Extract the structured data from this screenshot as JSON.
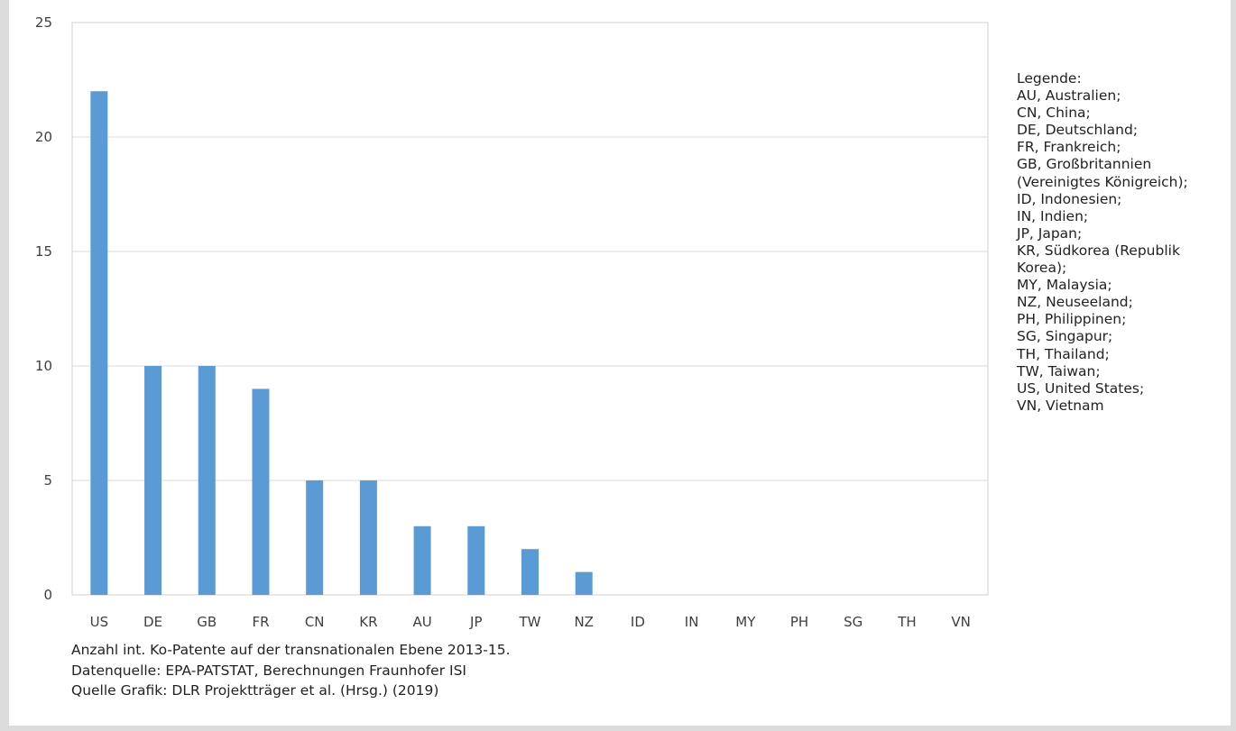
{
  "chart_data": {
    "type": "bar",
    "categories": [
      "US",
      "DE",
      "GB",
      "FR",
      "CN",
      "KR",
      "AU",
      "JP",
      "TW",
      "NZ",
      "ID",
      "IN",
      "MY",
      "PH",
      "SG",
      "TH",
      "VN"
    ],
    "values": [
      22,
      10,
      10,
      9,
      5,
      5,
      3,
      3,
      2,
      1,
      0,
      0,
      0,
      0,
      0,
      0,
      0
    ],
    "ylim": [
      0,
      25
    ],
    "yticks": [
      "0",
      "5",
      "10",
      "15",
      "20",
      "25"
    ],
    "grid": true,
    "legend_placement": "right"
  },
  "colors": {
    "bar": "#5b9bd5",
    "grid": "#d9d9d9",
    "axis": "#bfbfbf",
    "frame": "#dcdcdc"
  },
  "legend": {
    "heading": "Legende:",
    "items": [
      "AU, Australien;",
      "CN, China;",
      "DE, Deutschland;",
      "FR, Frankreich;",
      "GB, Großbritannien (Vereinigtes Königreich);",
      "ID, Indonesien;",
      "IN, Indien;",
      "JP, Japan;",
      "KR, Südkorea (Republik Korea);",
      "MY, Malaysia;",
      "NZ, Neuseeland;",
      "PH, Philippinen;",
      "SG, Singapur;",
      "TH, Thailand;",
      "TW, Taiwan;",
      "US, United States;",
      "VN, Vietnam"
    ]
  },
  "caption": {
    "line1": "Anzahl int. Ko-Patente auf der transnationalen Ebene 2013-15.",
    "line2": "Datenquelle: EPA-PATSTAT, Berechnungen Fraunhofer ISI",
    "line3": "Quelle Grafik: DLR Projektträger et al. (Hrsg.) (2019)"
  }
}
